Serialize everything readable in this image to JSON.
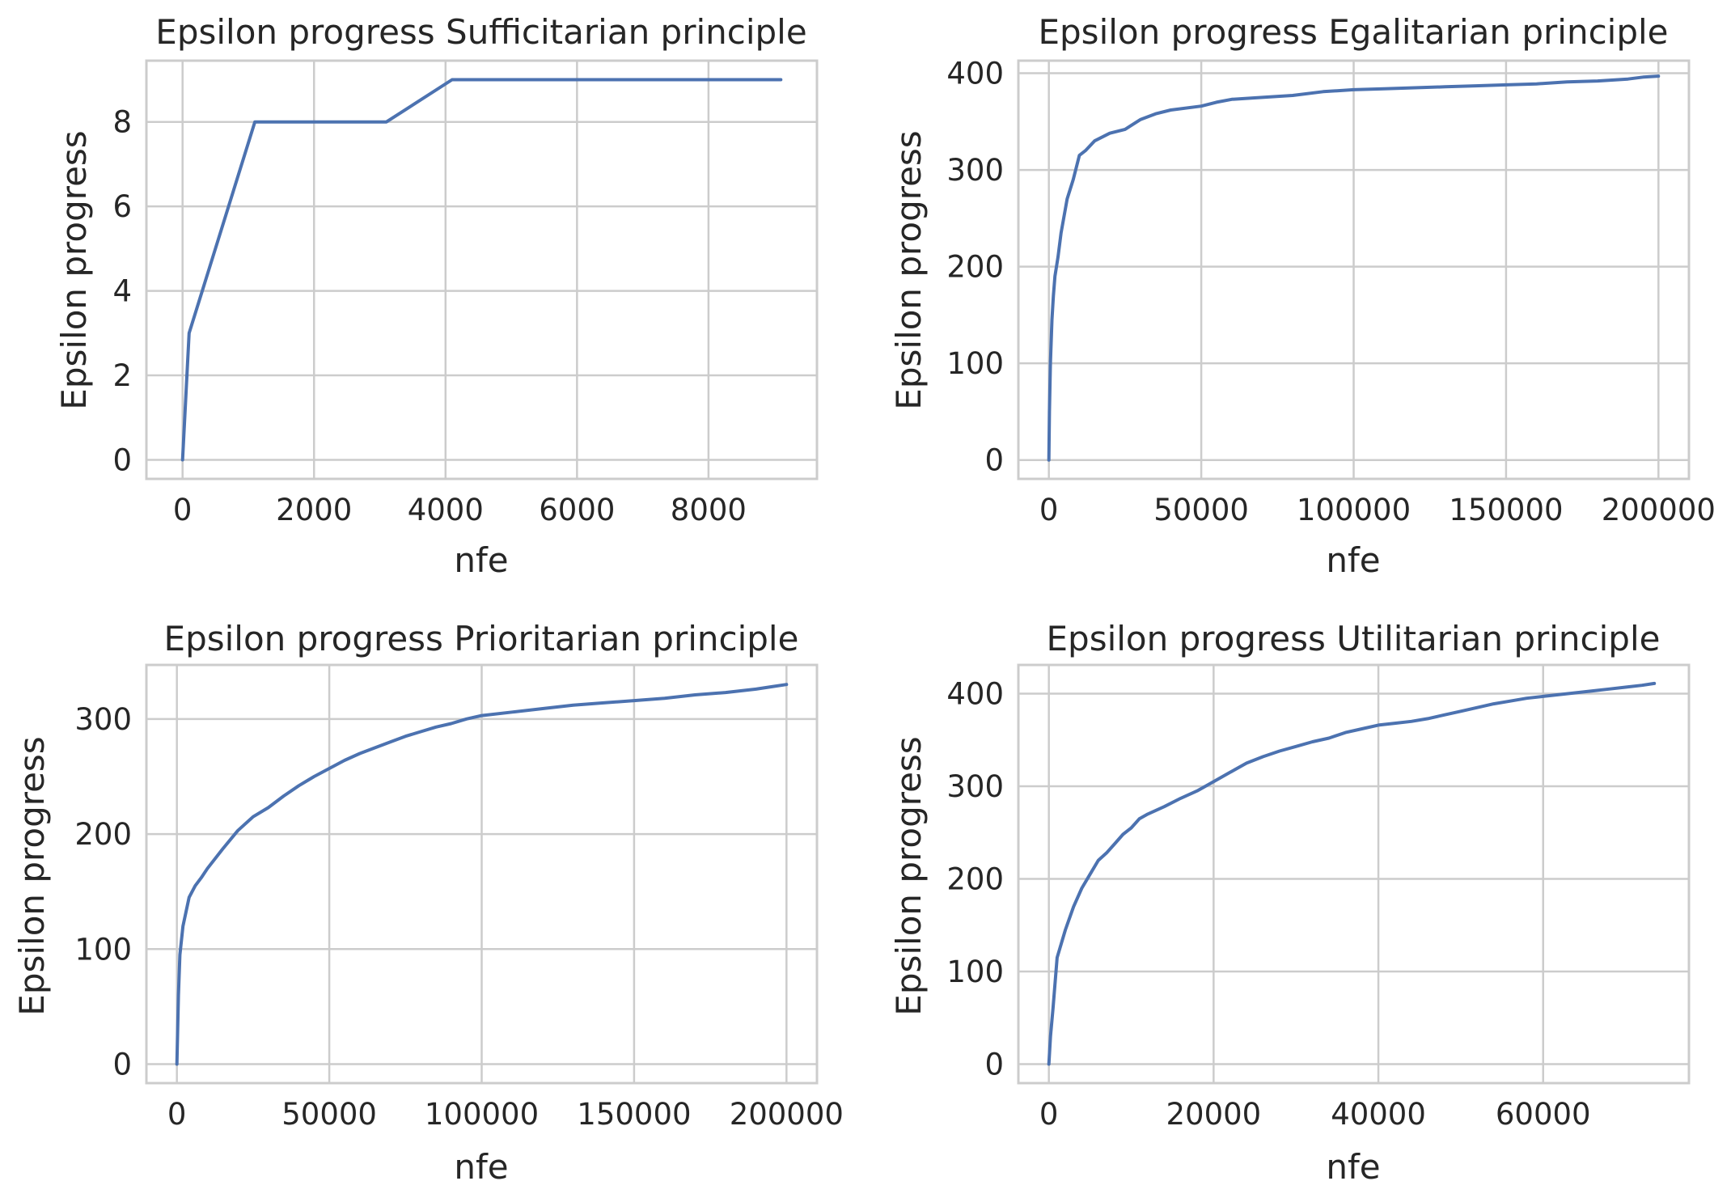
{
  "figure": {
    "line_color": "#4c72b0",
    "grid_color": "#cccccc",
    "background": "#ffffff"
  },
  "chart_data": [
    {
      "type": "line",
      "title": "Epsilon progress Sufficitarian principle",
      "xlabel": "nfe",
      "ylabel": "Epsilon progress",
      "xlim": [
        -550,
        9650
      ],
      "ylim": [
        -0.45,
        9.45
      ],
      "xticks": [
        0,
        2000,
        4000,
        6000,
        8000
      ],
      "yticks": [
        0,
        2,
        4,
        6,
        8
      ],
      "xtick_labels": [
        "0",
        "2000",
        "4000",
        "6000",
        "8000"
      ],
      "ytick_labels": [
        "0",
        "2",
        "4",
        "6",
        "8"
      ],
      "grid": true,
      "x": [
        0,
        100,
        1100,
        3100,
        4100,
        9100
      ],
      "y": [
        0,
        3,
        8,
        8,
        9,
        9
      ]
    },
    {
      "type": "line",
      "title": "Epsilon progress Egalitarian principle",
      "xlabel": "nfe",
      "ylabel": "Epsilon progress",
      "xlim": [
        -10000,
        210000
      ],
      "ylim": [
        -19.5,
        413
      ],
      "xticks": [
        0,
        50000,
        100000,
        150000,
        200000
      ],
      "yticks": [
        0,
        100,
        200,
        300,
        400
      ],
      "xtick_labels": [
        "0",
        "50000",
        "100000",
        "150000",
        "200000"
      ],
      "ytick_labels": [
        "0",
        "100",
        "200",
        "300",
        "400"
      ],
      "grid": true,
      "x": [
        0,
        200,
        500,
        1000,
        1500,
        2000,
        3000,
        4000,
        6000,
        8000,
        10000,
        12000,
        15000,
        20000,
        25000,
        30000,
        35000,
        40000,
        50000,
        55000,
        60000,
        70000,
        80000,
        90000,
        100000,
        110000,
        120000,
        130000,
        140000,
        150000,
        160000,
        170000,
        180000,
        190000,
        195000,
        200000
      ],
      "y": [
        0,
        50,
        100,
        145,
        170,
        190,
        210,
        235,
        270,
        290,
        315,
        320,
        330,
        338,
        342,
        352,
        358,
        362,
        366,
        370,
        373,
        375,
        377,
        381,
        383,
        384,
        385,
        386,
        387,
        388,
        389,
        391,
        392,
        394,
        396,
        397
      ]
    },
    {
      "type": "line",
      "title": "Epsilon progress Prioritarian principle",
      "xlabel": "nfe",
      "ylabel": "Epsilon progress",
      "xlim": [
        -10000,
        210000
      ],
      "ylim": [
        -16.5,
        347
      ],
      "xticks": [
        0,
        50000,
        100000,
        150000,
        200000
      ],
      "yticks": [
        0,
        100,
        200,
        300
      ],
      "xtick_labels": [
        "0",
        "50000",
        "100000",
        "150000",
        "200000"
      ],
      "ytick_labels": [
        "0",
        "100",
        "200",
        "300"
      ],
      "grid": true,
      "x": [
        0,
        500,
        1000,
        2000,
        4000,
        6000,
        8000,
        10000,
        15000,
        20000,
        25000,
        30000,
        35000,
        40000,
        45000,
        50000,
        55000,
        60000,
        65000,
        70000,
        75000,
        80000,
        85000,
        90000,
        95000,
        100000,
        110000,
        120000,
        130000,
        140000,
        150000,
        160000,
        170000,
        180000,
        190000,
        195000,
        200000
      ],
      "y": [
        0,
        60,
        95,
        120,
        145,
        155,
        162,
        170,
        187,
        203,
        215,
        223,
        233,
        242,
        250,
        257,
        264,
        270,
        275,
        280,
        285,
        289,
        293,
        296,
        300,
        303,
        306,
        309,
        312,
        314,
        316,
        318,
        321,
        323,
        326,
        328,
        330
      ]
    },
    {
      "type": "line",
      "title": "Epsilon progress Utilitarian principle",
      "xlabel": "nfe",
      "ylabel": "Epsilon progress",
      "xlim": [
        -3700,
        77700
      ],
      "ylim": [
        -20.5,
        431
      ],
      "xticks": [
        0,
        20000,
        40000,
        60000
      ],
      "yticks": [
        0,
        100,
        200,
        300,
        400
      ],
      "xtick_labels": [
        "0",
        "20000",
        "40000",
        "60000"
      ],
      "ytick_labels": [
        "0",
        "100",
        "200",
        "300",
        "400"
      ],
      "grid": true,
      "x": [
        0,
        200,
        500,
        1000,
        2000,
        3000,
        4000,
        5000,
        6000,
        7000,
        8000,
        9000,
        10000,
        11000,
        12000,
        14000,
        16000,
        18000,
        20000,
        22000,
        24000,
        26000,
        28000,
        30000,
        32000,
        34000,
        36000,
        38000,
        40000,
        42000,
        44000,
        46000,
        48000,
        50000,
        52000,
        54000,
        56000,
        58000,
        60000,
        62000,
        64000,
        66000,
        68000,
        70000,
        72000,
        73500
      ],
      "y": [
        0,
        30,
        60,
        115,
        145,
        170,
        190,
        205,
        220,
        228,
        238,
        248,
        255,
        265,
        270,
        278,
        287,
        295,
        305,
        315,
        325,
        332,
        338,
        343,
        348,
        352,
        358,
        362,
        366,
        368,
        370,
        373,
        377,
        381,
        385,
        389,
        392,
        395,
        397,
        399,
        401,
        403,
        405,
        407,
        409,
        411
      ]
    }
  ]
}
